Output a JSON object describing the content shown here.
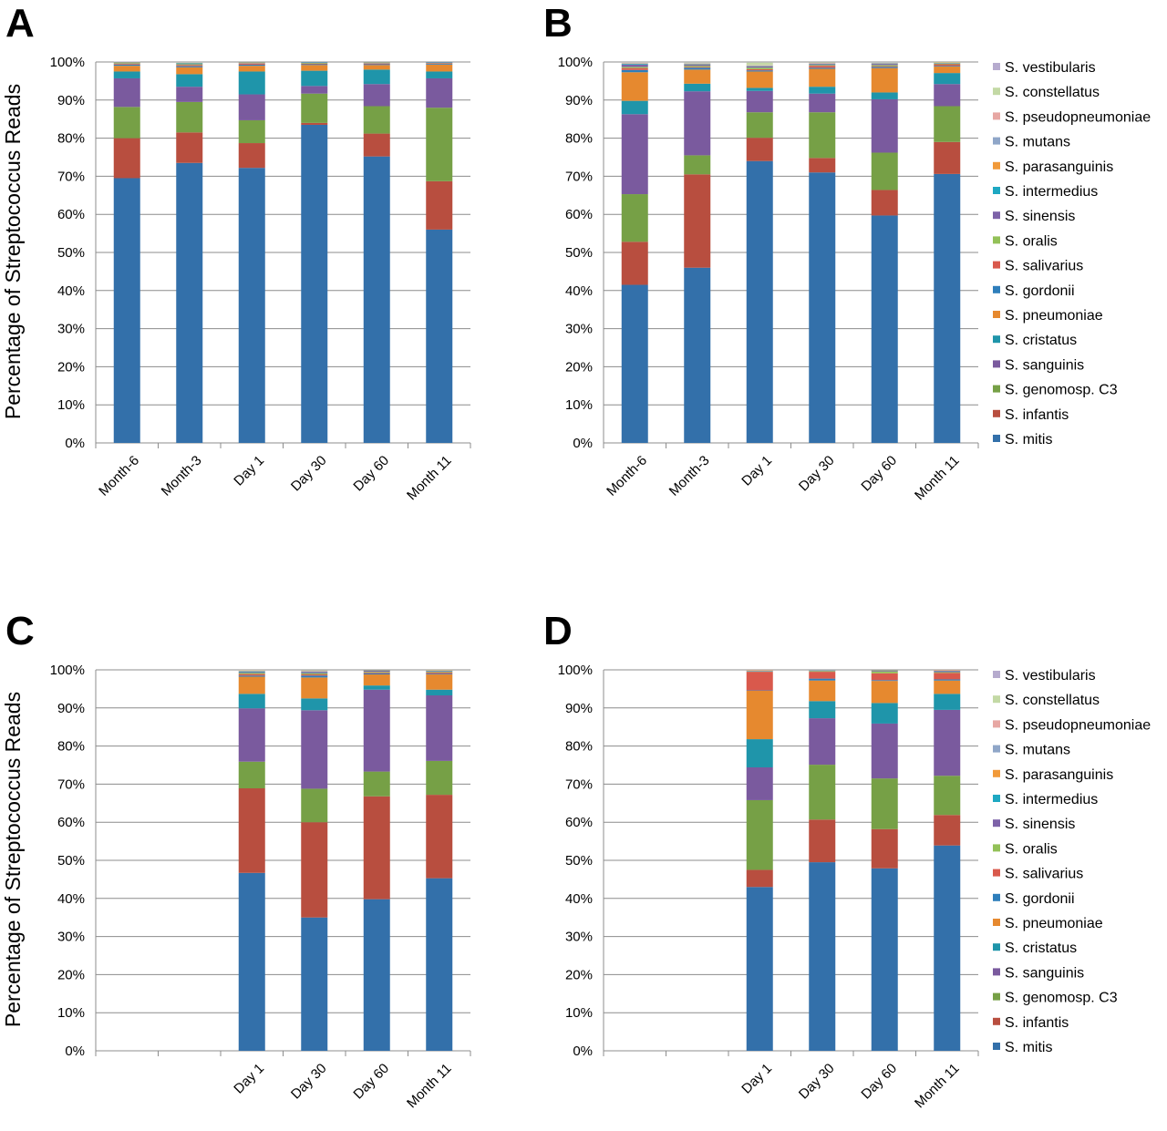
{
  "figure": {
    "ylabel": "Percentage of Streptococcus Reads",
    "yticks": [
      "0%",
      "10%",
      "20%",
      "30%",
      "40%",
      "50%",
      "60%",
      "70%",
      "80%",
      "90%",
      "100%"
    ]
  },
  "legend": {
    "species": [
      "S. mitis",
      "S. infantis",
      "S. genomosp. C3",
      "S. sanguinis",
      "S. cristatus",
      "S. pneumoniae",
      "S. gordonii",
      "S. salivarius",
      "S. oralis",
      "S. sinensis",
      "S. intermedius",
      "S. parasanguinis",
      "S. mutans",
      "S. pseudopneumoniae",
      "S. constellatus",
      "S. vestibularis"
    ],
    "colors": [
      "#3370AA",
      "#B84E3F",
      "#76A046",
      "#7A5A9E",
      "#1F95AA",
      "#E6892F",
      "#2E7EBB",
      "#D9594C",
      "#93C158",
      "#7D62A8",
      "#1EA8C2",
      "#F19A3A",
      "#8FA6C8",
      "#E7A7A3",
      "#C3D9A5",
      "#B6ABCE"
    ]
  },
  "chart_data": [
    {
      "type": "bar",
      "stacked": true,
      "panel": "A",
      "categories": [
        "Month-6",
        "Month-3",
        "Day 1",
        "Day 30",
        "Day 60",
        "Month 11"
      ],
      "ylabel": "Percentage of Streptococcus Reads",
      "ylim": [
        0,
        100
      ],
      "series": [
        {
          "name": "S. mitis",
          "values": [
            69.5,
            73.5,
            72.2,
            83.5,
            75.2,
            56.0
          ]
        },
        {
          "name": "S. infantis",
          "values": [
            10.5,
            8.0,
            6.5,
            0.5,
            6.0,
            12.7
          ]
        },
        {
          "name": "S. genomosp. C3",
          "values": [
            8.2,
            8.0,
            6.0,
            7.7,
            7.2,
            19.3
          ]
        },
        {
          "name": "S. sanguinis",
          "values": [
            7.5,
            4.0,
            6.8,
            2.0,
            5.8,
            7.7
          ]
        },
        {
          "name": "S. cristatus",
          "values": [
            1.8,
            3.3,
            6.0,
            4.0,
            3.8,
            1.8
          ]
        },
        {
          "name": "S. pneumoniae",
          "values": [
            1.5,
            1.8,
            1.5,
            1.5,
            1.2,
            1.8
          ]
        },
        {
          "name": "S. gordonii",
          "values": [
            0.3,
            0.3,
            0.3,
            0.2,
            0.2,
            0.2
          ]
        },
        {
          "name": "S. salivarius",
          "values": [
            0.2,
            0.3,
            0.3,
            0.2,
            0.2,
            0.2
          ]
        },
        {
          "name": "S. oralis",
          "values": [
            0.2,
            0.2,
            0.1,
            0.2,
            0.1,
            0.1
          ]
        },
        {
          "name": "S. sinensis",
          "values": [
            0.1,
            0.1,
            0.1,
            0.1,
            0.1,
            0.1
          ]
        },
        {
          "name": "S. intermedius",
          "values": [
            0.1,
            0.2,
            0.1,
            0.1,
            0.1,
            0.1
          ]
        },
        {
          "name": "S. parasanguinis",
          "values": [
            0.1,
            0.1,
            0.1,
            0.0,
            0.1,
            0.0
          ]
        },
        {
          "name": "S. mutans",
          "values": [
            0.0,
            0.0,
            0.0,
            0.0,
            0.0,
            0.0
          ]
        },
        {
          "name": "S. pseudopneumoniae",
          "values": [
            0.0,
            0.0,
            0.0,
            0.0,
            0.0,
            0.0
          ]
        },
        {
          "name": "S. constellatus",
          "values": [
            0.0,
            0.1,
            0.0,
            0.0,
            0.0,
            0.0
          ]
        },
        {
          "name": "S. vestibularis",
          "values": [
            0.1,
            0.1,
            0.0,
            0.0,
            0.0,
            0.0
          ]
        }
      ]
    },
    {
      "type": "bar",
      "stacked": true,
      "panel": "B",
      "categories": [
        "Month-6",
        "Month-3",
        "Day 1",
        "Day 30",
        "Day 60",
        "Month 11"
      ],
      "ylim": [
        0,
        100
      ],
      "series": [
        {
          "name": "S. mitis",
          "values": [
            41.5,
            46.0,
            74.0,
            71.0,
            59.7,
            70.6
          ]
        },
        {
          "name": "S. infantis",
          "values": [
            11.3,
            24.5,
            6.1,
            3.8,
            6.7,
            8.4
          ]
        },
        {
          "name": "S. genomosp. C3",
          "values": [
            12.5,
            5.0,
            6.7,
            12.0,
            9.8,
            9.4
          ]
        },
        {
          "name": "S. sanguinis",
          "values": [
            21.0,
            16.8,
            5.6,
            4.9,
            14.0,
            5.8
          ]
        },
        {
          "name": "S. cristatus",
          "values": [
            3.5,
            2.0,
            0.8,
            1.8,
            1.8,
            2.9
          ]
        },
        {
          "name": "S. pneumoniae",
          "values": [
            7.5,
            3.7,
            4.3,
            4.7,
            6.4,
            1.7
          ]
        },
        {
          "name": "S. gordonii",
          "values": [
            0.6,
            0.5,
            0.3,
            0.3,
            0.3,
            0.2
          ]
        },
        {
          "name": "S. salivarius",
          "values": [
            0.5,
            0.2,
            0.3,
            0.5,
            0.2,
            0.4
          ]
        },
        {
          "name": "S. oralis",
          "values": [
            0.3,
            0.3,
            0.4,
            0.2,
            0.3,
            0.2
          ]
        },
        {
          "name": "S. sinensis",
          "values": [
            0.6,
            0.3,
            0.3,
            0.2,
            0.3,
            0.1
          ]
        },
        {
          "name": "S. intermedius",
          "values": [
            0.2,
            0.1,
            0.1,
            0.1,
            0.1,
            0.1
          ]
        },
        {
          "name": "S. parasanguinis",
          "values": [
            0.1,
            0.1,
            0.1,
            0.1,
            0.1,
            0.1
          ]
        },
        {
          "name": "S. mutans",
          "values": [
            0.1,
            0.1,
            0.1,
            0.1,
            0.1,
            0.0
          ]
        },
        {
          "name": "S. pseudopneumoniae",
          "values": [
            0.1,
            0.1,
            0.1,
            0.1,
            0.0,
            0.0
          ]
        },
        {
          "name": "S. constellatus",
          "values": [
            0.1,
            0.2,
            0.7,
            0.1,
            0.1,
            0.1
          ]
        },
        {
          "name": "S. vestibularis",
          "values": [
            0.1,
            0.1,
            0.1,
            0.0,
            0.1,
            0.0
          ]
        }
      ]
    },
    {
      "type": "bar",
      "stacked": true,
      "panel": "C",
      "categories": [
        "",
        "",
        "Day 1",
        "Day 30",
        "Day 60",
        "Month 11"
      ],
      "ylabel": "Percentage of Streptococcus Reads",
      "ylim": [
        0,
        100
      ],
      "series": [
        {
          "name": "S. mitis",
          "values": [
            0,
            0,
            46.7,
            35.0,
            39.8,
            45.3
          ]
        },
        {
          "name": "S. infantis",
          "values": [
            0,
            0,
            22.2,
            25.0,
            27.0,
            21.9
          ]
        },
        {
          "name": "S. genomosp. C3",
          "values": [
            0,
            0,
            7.0,
            8.8,
            6.5,
            8.9
          ]
        },
        {
          "name": "S. sanguinis",
          "values": [
            0,
            0,
            14.0,
            20.6,
            21.5,
            17.2
          ]
        },
        {
          "name": "S. cristatus",
          "values": [
            0,
            0,
            3.8,
            3.1,
            1.1,
            1.5
          ]
        },
        {
          "name": "S. pneumoniae",
          "values": [
            0,
            0,
            4.5,
            5.5,
            2.9,
            4.0
          ]
        },
        {
          "name": "S. gordonii",
          "values": [
            0,
            0,
            0.3,
            0.5,
            0.3,
            0.2
          ]
        },
        {
          "name": "S. salivarius",
          "values": [
            0,
            0,
            0.4,
            0.3,
            0.2,
            0.3
          ]
        },
        {
          "name": "S. oralis",
          "values": [
            0,
            0,
            0.3,
            0.3,
            0.2,
            0.2
          ]
        },
        {
          "name": "S. sinensis",
          "values": [
            0,
            0,
            0.2,
            0.3,
            0.3,
            0.2
          ]
        },
        {
          "name": "S. intermedius",
          "values": [
            0,
            0,
            0.2,
            0.1,
            0.1,
            0.1
          ]
        },
        {
          "name": "S. parasanguinis",
          "values": [
            0,
            0,
            0.1,
            0.1,
            0.1,
            0.1
          ]
        },
        {
          "name": "S. mutans",
          "values": [
            0,
            0,
            0.1,
            0.1,
            0.0,
            0.0
          ]
        },
        {
          "name": "S. pseudopneumoniae",
          "values": [
            0,
            0,
            0.1,
            0.1,
            0.0,
            0.0
          ]
        },
        {
          "name": "S. constellatus",
          "values": [
            0,
            0,
            0.1,
            0.1,
            0.0,
            0.1
          ]
        },
        {
          "name": "S. vestibularis",
          "values": [
            0,
            0,
            0.0,
            0.0,
            0.0,
            0.0
          ]
        }
      ]
    },
    {
      "type": "bar",
      "stacked": true,
      "panel": "D",
      "categories": [
        "",
        "",
        "Day 1",
        "Day 30",
        "Day 60",
        "Month 11"
      ],
      "ylim": [
        0,
        100
      ],
      "series": [
        {
          "name": "S. mitis",
          "values": [
            0,
            0,
            43.0,
            49.5,
            47.9,
            53.9
          ]
        },
        {
          "name": "S. infantis",
          "values": [
            0,
            0,
            4.5,
            11.2,
            10.3,
            8.0
          ]
        },
        {
          "name": "S. genomosp. C3",
          "values": [
            0,
            0,
            18.3,
            14.4,
            13.3,
            10.3
          ]
        },
        {
          "name": "S. sanguinis",
          "values": [
            0,
            0,
            8.6,
            12.2,
            14.4,
            17.3
          ]
        },
        {
          "name": "S. cristatus",
          "values": [
            0,
            0,
            7.4,
            4.5,
            5.4,
            4.2
          ]
        },
        {
          "name": "S. pneumoniae",
          "values": [
            0,
            0,
            12.7,
            5.4,
            5.8,
            3.5
          ]
        },
        {
          "name": "S. gordonii",
          "values": [
            0,
            0,
            0.1,
            0.5,
            0.2,
            0.3
          ]
        },
        {
          "name": "S. salivarius",
          "values": [
            0,
            0,
            4.9,
            1.8,
            1.8,
            1.7
          ]
        },
        {
          "name": "S. oralis",
          "values": [
            0,
            0,
            0.1,
            0.2,
            0.5,
            0.2
          ]
        },
        {
          "name": "S. sinensis",
          "values": [
            0,
            0,
            0.1,
            0.1,
            0.2,
            0.3
          ]
        },
        {
          "name": "S. intermedius",
          "values": [
            0,
            0,
            0.1,
            0.1,
            0.1,
            0.1
          ]
        },
        {
          "name": "S. parasanguinis",
          "values": [
            0,
            0,
            0.1,
            0.0,
            0.1,
            0.1
          ]
        },
        {
          "name": "S. mutans",
          "values": [
            0,
            0,
            0.0,
            0.0,
            0.0,
            0.0
          ]
        },
        {
          "name": "S. pseudopneumoniae",
          "values": [
            0,
            0,
            0.1,
            0.1,
            0.0,
            0.1
          ]
        },
        {
          "name": "S. constellatus",
          "values": [
            0,
            0,
            0.0,
            0.0,
            0.0,
            0.0
          ]
        },
        {
          "name": "S. vestibularis",
          "values": [
            0,
            0,
            0.0,
            0.0,
            0.0,
            0.0
          ]
        }
      ]
    }
  ]
}
